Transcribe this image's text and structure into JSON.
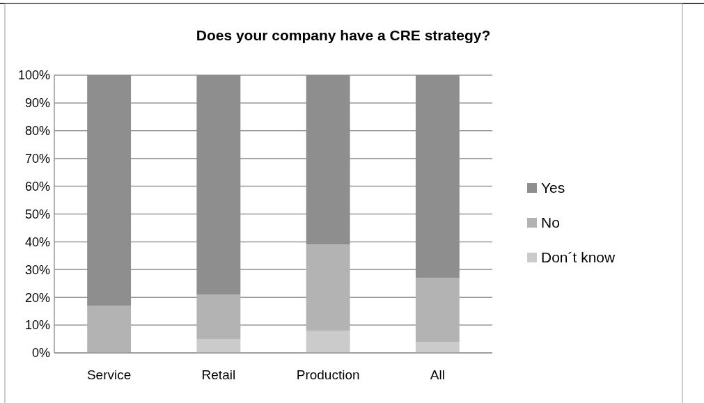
{
  "chart_data": {
    "type": "bar",
    "title": "Does your company have a CRE strategy?",
    "categories": [
      "Service",
      "Retail",
      "Production",
      "All"
    ],
    "stacked": true,
    "series": [
      {
        "name": "Don´t know",
        "color": "#cbcbcb",
        "values": [
          0,
          5,
          8,
          4
        ]
      },
      {
        "name": "No",
        "color": "#b3b3b3",
        "values": [
          17,
          16,
          31,
          23
        ]
      },
      {
        "name": "Yes",
        "color": "#8e8e8e",
        "values": [
          83,
          79,
          61,
          73
        ]
      }
    ],
    "ylim": [
      0,
      100
    ],
    "yticks": [
      {
        "value": 0,
        "label": "0%"
      },
      {
        "value": 10,
        "label": "10%"
      },
      {
        "value": 20,
        "label": "20%"
      },
      {
        "value": 30,
        "label": "30%"
      },
      {
        "value": 40,
        "label": "40%"
      },
      {
        "value": 50,
        "label": "50%"
      },
      {
        "value": 60,
        "label": "60%"
      },
      {
        "value": 70,
        "label": "70%"
      },
      {
        "value": 80,
        "label": "80%"
      },
      {
        "value": 90,
        "label": "90%"
      },
      {
        "value": 100,
        "label": "100%"
      }
    ],
    "grid": "y",
    "legend": "right"
  }
}
